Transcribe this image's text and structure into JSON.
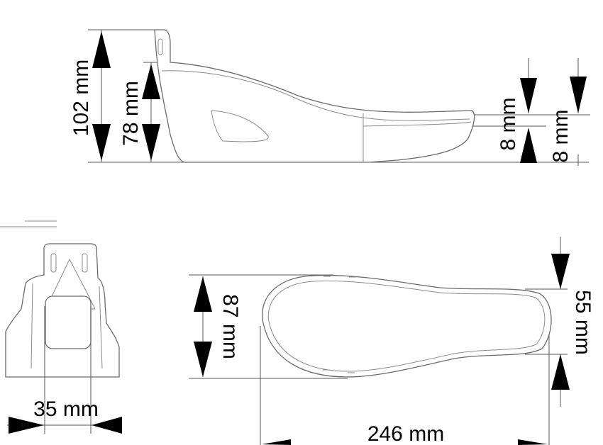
{
  "diagram": {
    "side_view": {
      "dimensions": {
        "total_height": "102 mm",
        "shell_height": "78 mm",
        "sole_thickness_front": "8 mm",
        "sole_thickness_rear": "8 mm"
      }
    },
    "rear_view": {
      "dimensions": {
        "heel_width": "35 mm"
      }
    },
    "top_view": {
      "dimensions": {
        "forefoot_width": "87 mm",
        "heel_width": "55 mm",
        "length": "246 mm"
      }
    }
  },
  "colors": {
    "line": "#6b6b6b",
    "arrow": "#000000",
    "background": "#ffffff"
  }
}
